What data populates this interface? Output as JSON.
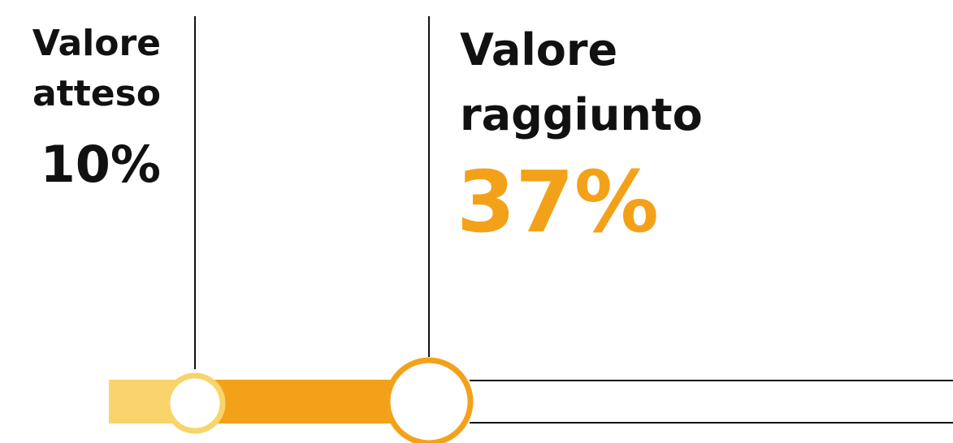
{
  "expected": {
    "label_lines": [
      "Valore",
      "atteso"
    ],
    "value": "10%"
  },
  "achieved": {
    "label_lines": [
      "Valore",
      "raggiunto"
    ],
    "value": "37%"
  }
}
